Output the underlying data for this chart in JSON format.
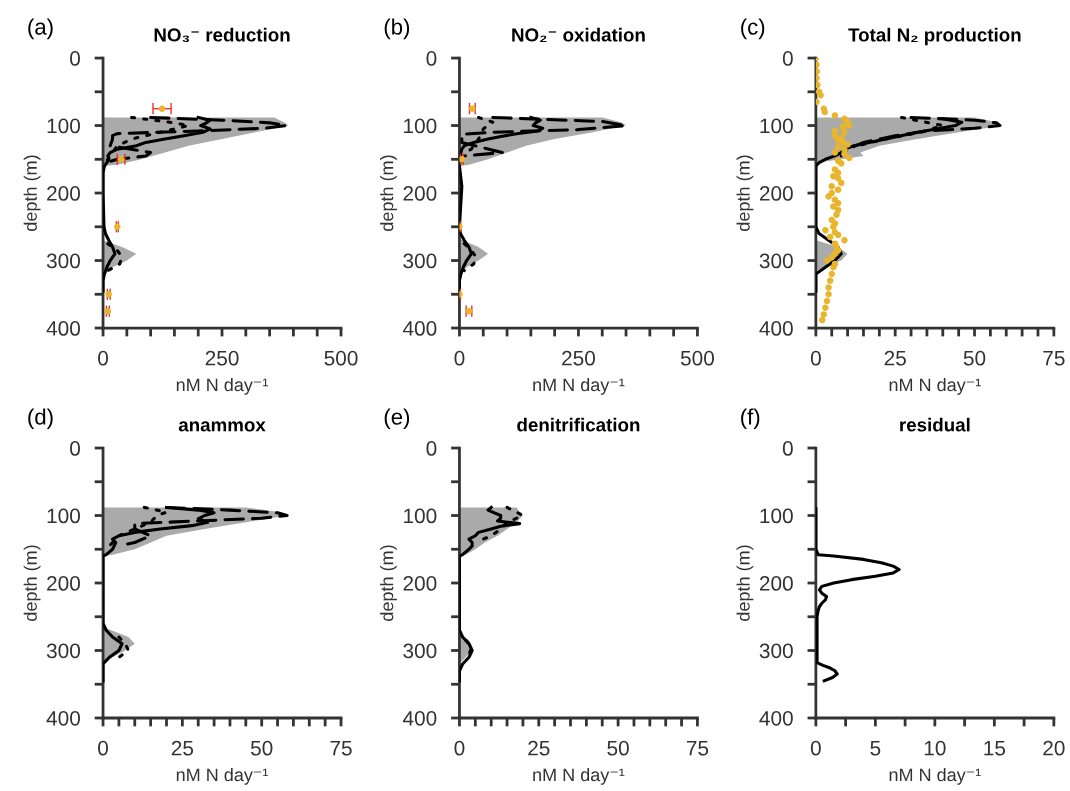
{
  "chart_data": [
    {
      "type": "line",
      "title": "NO₃⁻ reduction",
      "xlabel": "nM N day⁻¹",
      "ylabel": "depth (m)",
      "annotations": [
        "(a)"
      ],
      "xlim": [
        0,
        500
      ],
      "xticks": [
        0,
        {
          "value": 50,
          "label": null
        },
        {
          "value": 100,
          "label": null
        },
        {
          "value": 150,
          "label": null
        },
        {
          "value": 200,
          "label": null
        },
        250,
        {
          "value": 300,
          "label": null
        },
        {
          "value": 350,
          "label": null
        },
        {
          "value": 400,
          "label": null
        },
        {
          "value": 450,
          "label": null
        },
        500
      ],
      "ylim": [
        400,
        0
      ],
      "yticks": [
        0,
        {
          "value": 50,
          "label": null
        },
        100,
        {
          "value": 150,
          "label": null
        },
        200,
        {
          "value": 250,
          "label": null
        },
        300,
        {
          "value": 350,
          "label": null
        },
        400
      ],
      "series": [
        {
          "type": "area",
          "color": "#aaaaaa",
          "x": [
            360,
            380,
            390,
            320,
            250,
            180,
            130,
            80,
            30,
            0,
            0,
            40,
            70,
            50,
            20,
            5,
            0
          ],
          "values": [
            88,
            95,
            100,
            110,
            120,
            130,
            140,
            150,
            158,
            160,
            270,
            280,
            290,
            300,
            310,
            320,
            325
          ]
        },
        {
          "type": "line",
          "color": "#000000",
          "line_style": "dotted",
          "x": [
            60,
            140,
            180,
            120,
            60,
            30,
            20,
            10,
            3
          ],
          "values": [
            88,
            95,
            100,
            110,
            120,
            130,
            140,
            150,
            158
          ]
        },
        {
          "type": "line",
          "color": "#000000",
          "line_style": "dotted",
          "x": [
            10,
            30,
            40,
            35,
            10
          ],
          "values": [
            275,
            285,
            295,
            305,
            315
          ]
        },
        {
          "type": "line",
          "color": "#000000",
          "line_style": "dashed",
          "x": [
            100,
            250,
            350,
            385,
            340,
            200,
            30,
            20,
            20,
            15,
            100,
            90,
            30,
            5
          ],
          "values": [
            88,
            92,
            96,
            100,
            104,
            108,
            112,
            115,
            120,
            130,
            140,
            145,
            150,
            155
          ]
        },
        {
          "type": "line",
          "color": "#000000",
          "line_style": "solid",
          "x": [
            200,
            225,
            215,
            205,
            225,
            210,
            170,
            130,
            90,
            70,
            30,
            15,
            10,
            12,
            8,
            3,
            0,
            0,
            2,
            5,
            12,
            20,
            25,
            15,
            8,
            3,
            0,
            0,
            0
          ],
          "values": [
            88,
            92,
            97,
            100,
            105,
            110,
            115,
            120,
            125,
            130,
            135,
            140,
            145,
            150,
            155,
            160,
            170,
            200,
            250,
            260,
            270,
            280,
            290,
            300,
            310,
            320,
            330,
            340,
            345
          ]
        },
        {
          "type": "scatter",
          "color": "#e8b52c",
          "marker": "circle",
          "x": [
            124,
            38,
            30,
            12,
            10
          ],
          "values": [
            75,
            150,
            250,
            350,
            375
          ],
          "xerrors": [
            19,
            8,
            2,
            3,
            3
          ]
        }
      ]
    },
    {
      "type": "line",
      "title": "NO₂⁻ oxidation",
      "xlabel": "nM N day⁻¹",
      "ylabel": "depth (m)",
      "annotations": [
        "(b)"
      ],
      "xlim": [
        0,
        500
      ],
      "xticks": [
        0,
        {
          "value": 50,
          "label": null
        },
        {
          "value": 100,
          "label": null
        },
        {
          "value": 150,
          "label": null
        },
        {
          "value": 200,
          "label": null
        },
        250,
        {
          "value": 300,
          "label": null
        },
        {
          "value": 350,
          "label": null
        },
        {
          "value": 400,
          "label": null
        },
        {
          "value": 450,
          "label": null
        },
        500
      ],
      "ylim": [
        400,
        0
      ],
      "yticks": [
        0,
        {
          "value": 50,
          "label": null
        },
        100,
        {
          "value": 150,
          "label": null
        },
        200,
        {
          "value": 250,
          "label": null
        },
        300,
        {
          "value": 350,
          "label": null
        },
        400
      ],
      "series": [
        {
          "type": "area",
          "color": "#aaaaaa",
          "x": [
            300,
            340,
            350,
            280,
            200,
            140,
            100,
            60,
            20,
            0,
            0,
            40,
            60,
            40,
            15,
            0
          ],
          "values": [
            88,
            95,
            100,
            110,
            120,
            130,
            140,
            150,
            158,
            160,
            268,
            280,
            290,
            300,
            310,
            320
          ]
        },
        {
          "type": "line",
          "color": "#000000",
          "line_style": "dotted",
          "x": [
            40,
            70,
            50,
            45,
            35,
            25,
            10
          ],
          "values": [
            88,
            95,
            105,
            115,
            125,
            135,
            140
          ]
        },
        {
          "type": "line",
          "color": "#000000",
          "line_style": "dotted",
          "x": [
            10,
            25,
            35,
            30,
            10
          ],
          "values": [
            275,
            285,
            295,
            305,
            315
          ]
        },
        {
          "type": "line",
          "color": "#000000",
          "line_style": "dashed",
          "x": [
            70,
            300,
            350,
            250,
            70,
            5,
            5,
            5,
            90,
            10
          ],
          "values": [
            88,
            94,
            100,
            106,
            110,
            113,
            118,
            125,
            140,
            145
          ]
        },
        {
          "type": "line",
          "color": "#000000",
          "line_style": "solid",
          "x": [
            150,
            170,
            160,
            155,
            175,
            165,
            120,
            90,
            60,
            30,
            10,
            5,
            3,
            2,
            0,
            5,
            0,
            2,
            10,
            20,
            25,
            15,
            8,
            3,
            0,
            0
          ],
          "values": [
            88,
            92,
            96,
            100,
            104,
            108,
            112,
            116,
            120,
            125,
            130,
            135,
            140,
            150,
            160,
            190,
            250,
            260,
            270,
            280,
            290,
            300,
            310,
            320,
            330,
            345
          ]
        },
        {
          "type": "scatter",
          "color": "#e8b52c",
          "marker": "circle",
          "x": [
            27,
            5,
            0,
            0,
            20
          ],
          "values": [
            75,
            150,
            250,
            350,
            375
          ],
          "xerrors": [
            6,
            3,
            2,
            2,
            6
          ]
        }
      ]
    },
    {
      "type": "line",
      "title": "Total N₂ production",
      "xlabel": "nM N day⁻¹",
      "ylabel": "depth (m)",
      "annotations": [
        "(c)"
      ],
      "xlim": [
        0,
        75
      ],
      "xticks": [
        0,
        {
          "value": 5,
          "label": null
        },
        {
          "value": 10,
          "label": null
        },
        {
          "value": 15,
          "label": null
        },
        {
          "value": 20,
          "label": null
        },
        25,
        {
          "value": 30,
          "label": null
        },
        {
          "value": 35,
          "label": null
        },
        {
          "value": 40,
          "label": null
        },
        {
          "value": 45,
          "label": null
        },
        50,
        {
          "value": 55,
          "label": null
        },
        {
          "value": 60,
          "label": null
        },
        {
          "value": 65,
          "label": null
        },
        {
          "value": 70,
          "label": null
        },
        75
      ],
      "ylim": [
        400,
        0
      ],
      "yticks": [
        0,
        {
          "value": 50,
          "label": null
        },
        100,
        {
          "value": 150,
          "label": null
        },
        200,
        {
          "value": 250,
          "label": null
        },
        300,
        {
          "value": 350,
          "label": null
        },
        400
      ],
      "series": [
        {
          "type": "area",
          "color": "#aaaaaa",
          "x": [
            50,
            57,
            59,
            45,
            32,
            20,
            14,
            15,
            8,
            0,
            0,
            7,
            10,
            8,
            3,
            0
          ],
          "values": [
            88,
            95,
            100,
            110,
            120,
            130,
            140,
            145,
            150,
            155,
            270,
            280,
            290,
            300,
            310,
            315
          ]
        },
        {
          "type": "line",
          "color": "#000000",
          "line_style": "dotted",
          "x": [
            27,
            40,
            33,
            22,
            13
          ],
          "values": [
            88,
            100,
            110,
            120,
            130
          ]
        },
        {
          "type": "line",
          "color": "#000000",
          "line_style": "dashed",
          "x": [
            30,
            50,
            57,
            58,
            50,
            35,
            25,
            15,
            10,
            8
          ],
          "values": [
            88,
            92,
            96,
            100,
            104,
            108,
            115,
            125,
            135,
            145
          ]
        },
        {
          "type": "line",
          "color": "#000000",
          "line_style": "solid",
          "x": [
            40,
            46,
            44,
            38,
            32,
            22,
            12,
            9,
            8,
            6,
            3,
            1,
            0,
            0,
            1,
            4,
            7,
            8,
            6,
            3,
            0,
            0
          ],
          "values": [
            90,
            95,
            100,
            105,
            110,
            120,
            130,
            135,
            140,
            145,
            150,
            155,
            160,
            250,
            260,
            270,
            280,
            290,
            300,
            310,
            320,
            345
          ]
        },
        {
          "type": "scatter",
          "color": "#e8b52c",
          "marker": "circle",
          "x": [
            0,
            0.2,
            0.3,
            0.2,
            0.5,
            1,
            1.5,
            0.2,
            2.5,
            2.8,
            6,
            9,
            10,
            10.5,
            8.5,
            6,
            9,
            6,
            8,
            7,
            8.5,
            10,
            7,
            9,
            6,
            9,
            10.5,
            7,
            8,
            6,
            7,
            5.5,
            7,
            8,
            5,
            7,
            5,
            4,
            6,
            7,
            5.5,
            7,
            6.5,
            5,
            6,
            5.5,
            3,
            6,
            7,
            4.5,
            9,
            6,
            6.5,
            7,
            6,
            5,
            3.5,
            6,
            5.5,
            5,
            4.5,
            4,
            4,
            3.5,
            3,
            2.5,
            2
          ],
          "values": [
            0,
            10,
            20,
            30,
            40,
            50,
            55,
            65,
            75,
            80,
            85,
            90,
            95,
            100,
            102,
            108,
            110,
            115,
            118,
            122,
            125,
            128,
            132,
            136,
            140,
            142,
            148,
            152,
            156,
            165,
            170,
            175,
            178,
            185,
            190,
            195,
            200,
            205,
            210,
            215,
            220,
            225,
            232,
            240,
            245,
            250,
            255,
            258,
            262,
            265,
            270,
            275,
            280,
            285,
            290,
            295,
            300,
            305,
            310,
            320,
            330,
            340,
            350,
            360,
            370,
            380,
            388
          ]
        }
      ]
    },
    {
      "type": "line",
      "title": "anammox",
      "xlabel": "nM N day⁻¹",
      "ylabel": "depth (m)",
      "annotations": [
        "(d)"
      ],
      "xlim": [
        0,
        75
      ],
      "xticks": [
        0,
        {
          "value": 5,
          "label": null
        },
        {
          "value": 10,
          "label": null
        },
        {
          "value": 15,
          "label": null
        },
        {
          "value": 20,
          "label": null
        },
        25,
        {
          "value": 30,
          "label": null
        },
        {
          "value": 35,
          "label": null
        },
        {
          "value": 40,
          "label": null
        },
        {
          "value": 45,
          "label": null
        },
        50,
        {
          "value": 55,
          "label": null
        },
        {
          "value": 60,
          "label": null
        },
        {
          "value": 65,
          "label": null
        },
        {
          "value": 70,
          "label": null
        },
        75
      ],
      "ylim": [
        400,
        0
      ],
      "yticks": [
        0,
        {
          "value": 50,
          "label": null
        },
        100,
        {
          "value": 150,
          "label": null
        },
        200,
        {
          "value": 250,
          "label": null
        },
        300,
        {
          "value": 350,
          "label": null
        },
        400
      ],
      "series": [
        {
          "type": "area",
          "color": "#aaaaaa",
          "x": [
            45,
            56,
            58,
            45,
            32,
            20,
            15,
            10,
            3,
            0,
            0,
            8,
            10,
            7,
            3,
            0
          ],
          "values": [
            88,
            95,
            100,
            110,
            120,
            130,
            140,
            150,
            158,
            160,
            265,
            280,
            290,
            300,
            310,
            320
          ]
        },
        {
          "type": "line",
          "color": "#000000",
          "line_style": "dotted",
          "x": [
            13,
            20,
            17,
            15,
            10,
            5,
            3,
            1
          ],
          "values": [
            88,
            95,
            100,
            110,
            120,
            130,
            140,
            150
          ]
        },
        {
          "type": "line",
          "color": "#000000",
          "line_style": "dotted",
          "x": [
            5,
            7,
            8,
            5
          ],
          "values": [
            280,
            290,
            300,
            310
          ]
        },
        {
          "type": "line",
          "color": "#000000",
          "line_style": "dashed",
          "x": [
            20,
            40,
            55,
            58,
            50,
            30,
            10,
            10,
            15,
            10,
            5
          ],
          "values": [
            88,
            92,
            96,
            100,
            104,
            108,
            112,
            120,
            130,
            140,
            145
          ]
        },
        {
          "type": "line",
          "color": "#000000",
          "line_style": "solid",
          "x": [
            20,
            30,
            35,
            32,
            30,
            33,
            28,
            18,
            10,
            5,
            3,
            4,
            3,
            1,
            0,
            0,
            1,
            3,
            6,
            5,
            2,
            0,
            0
          ],
          "values": [
            88,
            92,
            96,
            100,
            105,
            110,
            115,
            120,
            125,
            130,
            135,
            140,
            150,
            158,
            160,
            260,
            270,
            280,
            290,
            300,
            310,
            320,
            345
          ]
        }
      ]
    },
    {
      "type": "line",
      "title": "denitrification",
      "xlabel": "nM N day⁻¹",
      "ylabel": "depth (m)",
      "annotations": [
        "(e)"
      ],
      "xlim": [
        0,
        75
      ],
      "xticks": [
        0,
        {
          "value": 5,
          "label": null
        },
        {
          "value": 10,
          "label": null
        },
        {
          "value": 15,
          "label": null
        },
        {
          "value": 20,
          "label": null
        },
        25,
        {
          "value": 30,
          "label": null
        },
        {
          "value": 35,
          "label": null
        },
        {
          "value": 40,
          "label": null
        },
        {
          "value": 45,
          "label": null
        },
        50,
        {
          "value": 55,
          "label": null
        },
        {
          "value": 60,
          "label": null
        },
        {
          "value": 65,
          "label": null
        },
        {
          "value": 70,
          "label": null
        },
        75
      ],
      "ylim": [
        400,
        0
      ],
      "yticks": [
        0,
        {
          "value": 50,
          "label": null
        },
        100,
        {
          "value": 150,
          "label": null
        },
        200,
        {
          "value": 250,
          "label": null
        },
        300,
        {
          "value": 350,
          "label": null
        },
        400
      ],
      "series": [
        {
          "type": "area",
          "color": "#aaaaaa",
          "x": [
            18,
            19,
            20,
            18,
            15,
            12,
            8,
            5,
            2,
            0,
            0,
            3,
            4,
            3,
            1,
            0
          ],
          "values": [
            88,
            95,
            100,
            110,
            120,
            130,
            140,
            150,
            158,
            160,
            275,
            285,
            295,
            305,
            315,
            320
          ]
        },
        {
          "type": "line",
          "color": "#000000",
          "line_style": "dotted",
          "x": [
            15,
            18,
            20,
            15,
            13,
            10,
            5
          ],
          "values": [
            88,
            95,
            100,
            110,
            120,
            130,
            140
          ]
        },
        {
          "type": "line",
          "color": "#000000",
          "line_style": "dotted",
          "x": [
            2,
            4,
            3
          ],
          "values": [
            285,
            295,
            305
          ]
        },
        {
          "type": "line",
          "color": "#000000",
          "line_style": "solid",
          "x": [
            10,
            9,
            11,
            13,
            13,
            12,
            19,
            13,
            10,
            6,
            5,
            3,
            4,
            4,
            3,
            1,
            0,
            0,
            1,
            3,
            4,
            3,
            1,
            0,
            0
          ],
          "values": [
            88,
            92,
            96,
            100,
            104,
            108,
            112,
            116,
            120,
            125,
            130,
            135,
            140,
            145,
            150,
            158,
            160,
            270,
            280,
            290,
            300,
            310,
            320,
            330,
            345
          ]
        }
      ]
    },
    {
      "type": "line",
      "title": "residual",
      "xlabel": "nM N day⁻¹",
      "ylabel": "depth (m)",
      "annotations": [
        "(f)"
      ],
      "xlim": [
        0,
        20
      ],
      "xticks": [
        0,
        {
          "value": 2.5,
          "label": null
        },
        5,
        {
          "value": 7.5,
          "label": null
        },
        10,
        {
          "value": 12.5,
          "label": null
        },
        15,
        {
          "value": 17.5,
          "label": null
        },
        20
      ],
      "ylim": [
        400,
        0
      ],
      "yticks": [
        0,
        {
          "value": 50,
          "label": null
        },
        100,
        {
          "value": 150,
          "label": null
        },
        200,
        {
          "value": 250,
          "label": null
        },
        300,
        {
          "value": 350,
          "label": null
        },
        400
      ],
      "series": [
        {
          "type": "line",
          "color": "#000000",
          "line_style": "solid",
          "x": [
            0,
            0,
            0.2,
            1.5,
            4,
            5.5,
            6.5,
            7,
            6.5,
            5,
            3,
            1.5,
            0.5,
            0.3,
            0.5,
            0.9,
            0.8,
            0.5,
            0.3,
            0.2,
            0.1,
            0.1,
            0.1,
            0.6,
            1.2,
            1.6,
            1.8,
            1.4,
            0.7
          ],
          "values": [
            90,
            150,
            158,
            160,
            165,
            170,
            175,
            180,
            185,
            190,
            195,
            200,
            205,
            210,
            215,
            220,
            225,
            230,
            235,
            240,
            250,
            300,
            318,
            322,
            326,
            330,
            335,
            340,
            345
          ]
        }
      ]
    }
  ]
}
